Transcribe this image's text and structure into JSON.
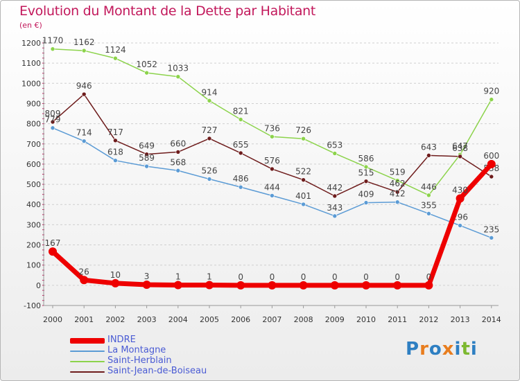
{
  "title": "Evolution du Montant de la Dette par Habitant",
  "unit_label": "(en €)",
  "logo": [
    "P",
    "r",
    "o",
    "x",
    "i",
    "t",
    "i"
  ],
  "logo_colors": [
    "#2e7fc2",
    "#e87d1e",
    "#2e7fc2",
    "#e87d1e",
    "#2e7fc2",
    "#7cb82f",
    "#2e7fc2"
  ],
  "chart_data": {
    "type": "line",
    "title": "Evolution du Montant de la Dette par Habitant",
    "ylabel": "(en €)",
    "xlabel": "",
    "ylim": [
      -100,
      1200
    ],
    "yticks": [
      "-100",
      "0",
      "100",
      "200",
      "300",
      "400",
      "500",
      "600",
      "700",
      "800",
      "900",
      "1000",
      "1100",
      "1200"
    ],
    "x": [
      "2000",
      "2001",
      "2002",
      "2003",
      "2004",
      "2005",
      "2006",
      "2007",
      "2008",
      "2009",
      "2010",
      "2011",
      "2012",
      "2013",
      "2014"
    ],
    "grid": "horizontal dashed",
    "legend_position": "bottom-left",
    "series": [
      {
        "name": "Saint-Herblain",
        "color": "#8cd34b",
        "values": [
          1170,
          1162,
          1124,
          1052,
          1033,
          914,
          821,
          736,
          726,
          653,
          586,
          519,
          446,
          647,
          920
        ]
      },
      {
        "name": "Saint-Jean-de-Boiseau",
        "color": "#6e1c1c",
        "values": [
          809,
          946,
          717,
          649,
          660,
          727,
          655,
          576,
          522,
          442,
          515,
          462,
          643,
          638,
          538
        ]
      },
      {
        "name": "La Montagne",
        "color": "#5b9bd5",
        "values": [
          779,
          714,
          618,
          589,
          568,
          526,
          486,
          444,
          401,
          343,
          409,
          412,
          355,
          296,
          235
        ]
      },
      {
        "name": "INDRE",
        "color": "#ee0000",
        "values": [
          167,
          26,
          10,
          3,
          1,
          1,
          0,
          0,
          0,
          0,
          0,
          0,
          0,
          430,
          600
        ]
      }
    ],
    "legend_order": [
      "INDRE",
      "La Montagne",
      "Saint-Herblain",
      "Saint-Jean-de-Boiseau"
    ]
  }
}
